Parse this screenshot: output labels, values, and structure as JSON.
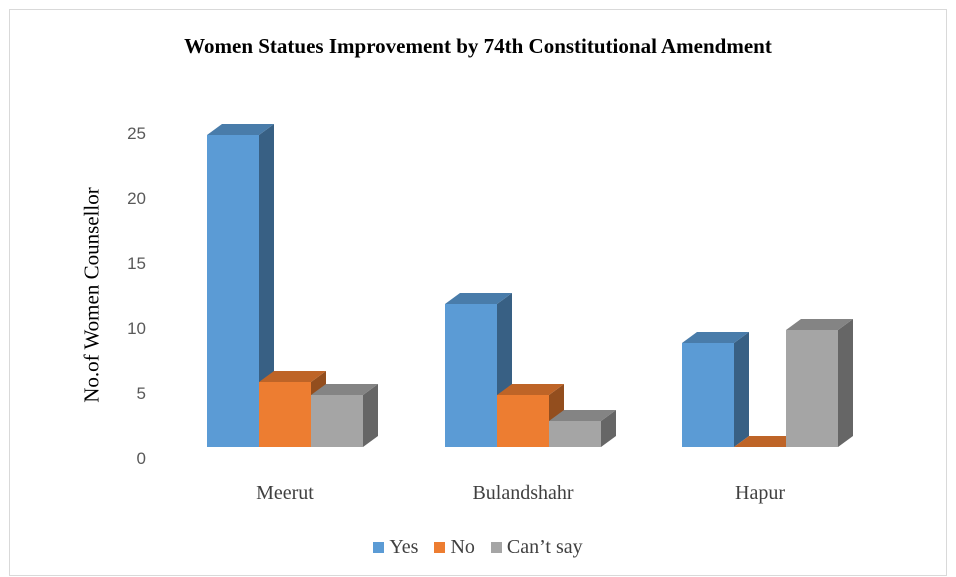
{
  "chart_data": {
    "type": "bar",
    "title": "Women Statues Improvement by 74th Constitutional Amendment",
    "ylabel": "No.of Women Counsellor",
    "xlabel": "",
    "categories": [
      "Meerut",
      "Bulandshahr",
      "Hapur"
    ],
    "series": [
      {
        "name": "Yes",
        "values": [
          24,
          11,
          8
        ],
        "color": "#5b9bd5"
      },
      {
        "name": "No",
        "values": [
          5,
          4,
          0
        ],
        "color": "#ed7d31"
      },
      {
        "name": "Can’t say",
        "values": [
          4,
          2,
          9
        ],
        "color": "#a5a5a5"
      }
    ],
    "ylim": [
      0,
      25
    ],
    "yticks": [
      "0",
      "5",
      "10",
      "15",
      "20",
      "25"
    ],
    "grid": false,
    "legend": "bottom",
    "style": "3d-column"
  }
}
